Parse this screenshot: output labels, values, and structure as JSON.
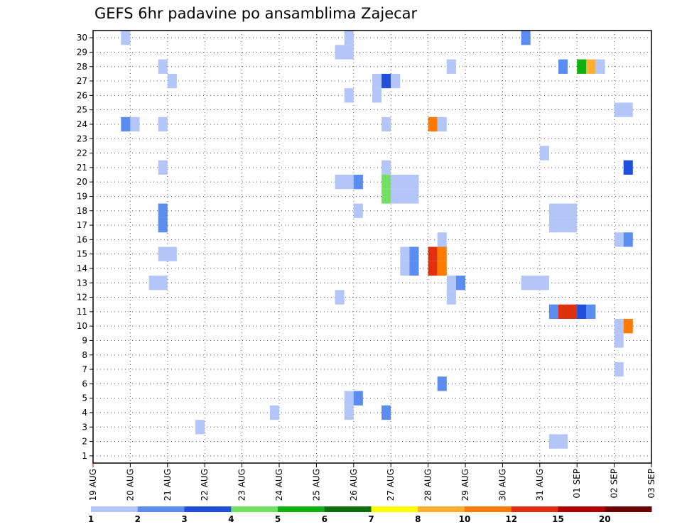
{
  "chart_data": {
    "type": "heatmap",
    "title": "GEFS 6hr padavine po ansamblima Zajecar",
    "x_tick_labels": [
      "19 AUG",
      "20 AUG",
      "21 AUG",
      "22 AUG",
      "23 AUG",
      "24 AUG",
      "25 AUG",
      "26 AUG",
      "27 AUG",
      "28 AUG",
      "29 AUG",
      "30 AUG",
      "31 AUG",
      "01 SEP",
      "02 SEP",
      "03 SEP"
    ],
    "y_tick_labels": [
      "1",
      "2",
      "3",
      "4",
      "5",
      "6",
      "7",
      "8",
      "9",
      "10",
      "11",
      "12",
      "13",
      "14",
      "15",
      "16",
      "17",
      "18",
      "19",
      "20",
      "21",
      "22",
      "23",
      "24",
      "25",
      "26",
      "27",
      "28",
      "29",
      "30"
    ],
    "xlim_days": [
      0,
      15
    ],
    "ylim": [
      0.5,
      30.5
    ],
    "grid": true,
    "colorbar": {
      "labels": [
        "1",
        "2",
        "3",
        "4",
        "5",
        "6",
        "7",
        "8",
        "10",
        "12",
        "15",
        "20"
      ],
      "colors": [
        "#b3c6f7",
        "#5b8cf0",
        "#1f4fdc",
        "#72e060",
        "#10b010",
        "#0a6e0a",
        "#ffff00",
        "#ffb030",
        "#ff7a00",
        "#e03010",
        "#b00000",
        "#6a0000"
      ]
    },
    "cells": [
      {
        "m": 30,
        "d": [
          0.75,
          1.0
        ],
        "c": 0
      },
      {
        "m": 30,
        "d": [
          6.75,
          7.0
        ],
        "c": 0
      },
      {
        "m": 30,
        "d": [
          11.5,
          11.75
        ],
        "c": 1
      },
      {
        "m": 29,
        "d": [
          6.5,
          7.0
        ],
        "c": 0
      },
      {
        "m": 28,
        "d": [
          1.75,
          2.0
        ],
        "c": 0
      },
      {
        "m": 28,
        "d": [
          9.5,
          9.75
        ],
        "c": 0
      },
      {
        "m": 28,
        "d": [
          12.5,
          12.75
        ],
        "c": 1
      },
      {
        "m": 28,
        "d": [
          13.0,
          13.25
        ],
        "c": 4
      },
      {
        "m": 28,
        "d": [
          13.25,
          13.5
        ],
        "c": 7
      },
      {
        "m": 28,
        "d": [
          13.5,
          13.75
        ],
        "c": 0
      },
      {
        "m": 27,
        "d": [
          2.0,
          2.25
        ],
        "c": 0
      },
      {
        "m": 27,
        "d": [
          7.5,
          7.75
        ],
        "c": 0
      },
      {
        "m": 27,
        "d": [
          7.75,
          8.0
        ],
        "c": 2
      },
      {
        "m": 27,
        "d": [
          8.0,
          8.25
        ],
        "c": 0
      },
      {
        "m": 26,
        "d": [
          6.75,
          7.0
        ],
        "c": 0
      },
      {
        "m": 26,
        "d": [
          7.5,
          7.75
        ],
        "c": 0
      },
      {
        "m": 25,
        "d": [
          14.0,
          14.5
        ],
        "c": 0
      },
      {
        "m": 24,
        "d": [
          0.75,
          1.0
        ],
        "c": 1
      },
      {
        "m": 24,
        "d": [
          1.0,
          1.25
        ],
        "c": 0
      },
      {
        "m": 24,
        "d": [
          1.75,
          2.0
        ],
        "c": 0
      },
      {
        "m": 24,
        "d": [
          7.75,
          8.0
        ],
        "c": 0
      },
      {
        "m": 24,
        "d": [
          9.0,
          9.25
        ],
        "c": 8
      },
      {
        "m": 24,
        "d": [
          9.25,
          9.5
        ],
        "c": 0
      },
      {
        "m": 22,
        "d": [
          12.0,
          12.25
        ],
        "c": 0
      },
      {
        "m": 21,
        "d": [
          1.75,
          2.0
        ],
        "c": 0
      },
      {
        "m": 21,
        "d": [
          7.75,
          8.0
        ],
        "c": 0
      },
      {
        "m": 21,
        "d": [
          14.25,
          14.5
        ],
        "c": 2
      },
      {
        "m": 20,
        "d": [
          6.5,
          7.0
        ],
        "c": 0
      },
      {
        "m": 20,
        "d": [
          7.0,
          7.25
        ],
        "c": 1
      },
      {
        "m": 20,
        "d": [
          7.75,
          8.0
        ],
        "c": 3
      },
      {
        "m": 20,
        "d": [
          8.0,
          8.75
        ],
        "c": 0
      },
      {
        "m": 19,
        "d": [
          7.75,
          8.0
        ],
        "c": 3
      },
      {
        "m": 19,
        "d": [
          8.0,
          8.75
        ],
        "c": 0
      },
      {
        "m": 18,
        "d": [
          1.75,
          2.0
        ],
        "c": 1
      },
      {
        "m": 18,
        "d": [
          12.25,
          13.0
        ],
        "c": 0
      },
      {
        "m": 18,
        "d": [
          7.0,
          7.25
        ],
        "c": 0
      },
      {
        "m": 17,
        "d": [
          1.75,
          2.0
        ],
        "c": 1
      },
      {
        "m": 17,
        "d": [
          12.25,
          13.0
        ],
        "c": 0
      },
      {
        "m": 16,
        "d": [
          9.25,
          9.5
        ],
        "c": 0
      },
      {
        "m": 16,
        "d": [
          14.0,
          14.25
        ],
        "c": 0
      },
      {
        "m": 16,
        "d": [
          14.25,
          14.5
        ],
        "c": 1
      },
      {
        "m": 15,
        "d": [
          1.75,
          2.25
        ],
        "c": 0
      },
      {
        "m": 15,
        "d": [
          8.25,
          8.5
        ],
        "c": 0
      },
      {
        "m": 15,
        "d": [
          8.5,
          8.75
        ],
        "c": 1
      },
      {
        "m": 15,
        "d": [
          9.0,
          9.25
        ],
        "c": 9
      },
      {
        "m": 15,
        "d": [
          9.25,
          9.5
        ],
        "c": 8
      },
      {
        "m": 14,
        "d": [
          8.25,
          8.5
        ],
        "c": 0
      },
      {
        "m": 14,
        "d": [
          8.5,
          8.75
        ],
        "c": 1
      },
      {
        "m": 14,
        "d": [
          9.0,
          9.25
        ],
        "c": 9
      },
      {
        "m": 14,
        "d": [
          9.25,
          9.5
        ],
        "c": 8
      },
      {
        "m": 13,
        "d": [
          1.5,
          2.0
        ],
        "c": 0
      },
      {
        "m": 13,
        "d": [
          9.5,
          9.75
        ],
        "c": 0
      },
      {
        "m": 13,
        "d": [
          9.75,
          10.0
        ],
        "c": 1
      },
      {
        "m": 13,
        "d": [
          11.5,
          12.25
        ],
        "c": 0
      },
      {
        "m": 12,
        "d": [
          6.5,
          6.75
        ],
        "c": 0
      },
      {
        "m": 12,
        "d": [
          9.5,
          9.75
        ],
        "c": 0
      },
      {
        "m": 11,
        "d": [
          12.25,
          12.5
        ],
        "c": 1
      },
      {
        "m": 11,
        "d": [
          12.5,
          13.0
        ],
        "c": 9
      },
      {
        "m": 11,
        "d": [
          13.0,
          13.25
        ],
        "c": 2
      },
      {
        "m": 11,
        "d": [
          13.25,
          13.5
        ],
        "c": 1
      },
      {
        "m": 10,
        "d": [
          14.0,
          14.25
        ],
        "c": 0
      },
      {
        "m": 10,
        "d": [
          14.25,
          14.5
        ],
        "c": 8
      },
      {
        "m": 9,
        "d": [
          14.0,
          14.25
        ],
        "c": 0
      },
      {
        "m": 7,
        "d": [
          14.0,
          14.25
        ],
        "c": 0
      },
      {
        "m": 6,
        "d": [
          9.25,
          9.5
        ],
        "c": 1
      },
      {
        "m": 5,
        "d": [
          6.75,
          7.0
        ],
        "c": 0
      },
      {
        "m": 5,
        "d": [
          7.0,
          7.25
        ],
        "c": 1
      },
      {
        "m": 4,
        "d": [
          4.75,
          5.0
        ],
        "c": 0
      },
      {
        "m": 4,
        "d": [
          6.75,
          7.0
        ],
        "c": 0
      },
      {
        "m": 4,
        "d": [
          7.75,
          8.0
        ],
        "c": 1
      },
      {
        "m": 3,
        "d": [
          2.75,
          3.0
        ],
        "c": 0
      },
      {
        "m": 2,
        "d": [
          12.25,
          12.75
        ],
        "c": 0
      }
    ]
  }
}
